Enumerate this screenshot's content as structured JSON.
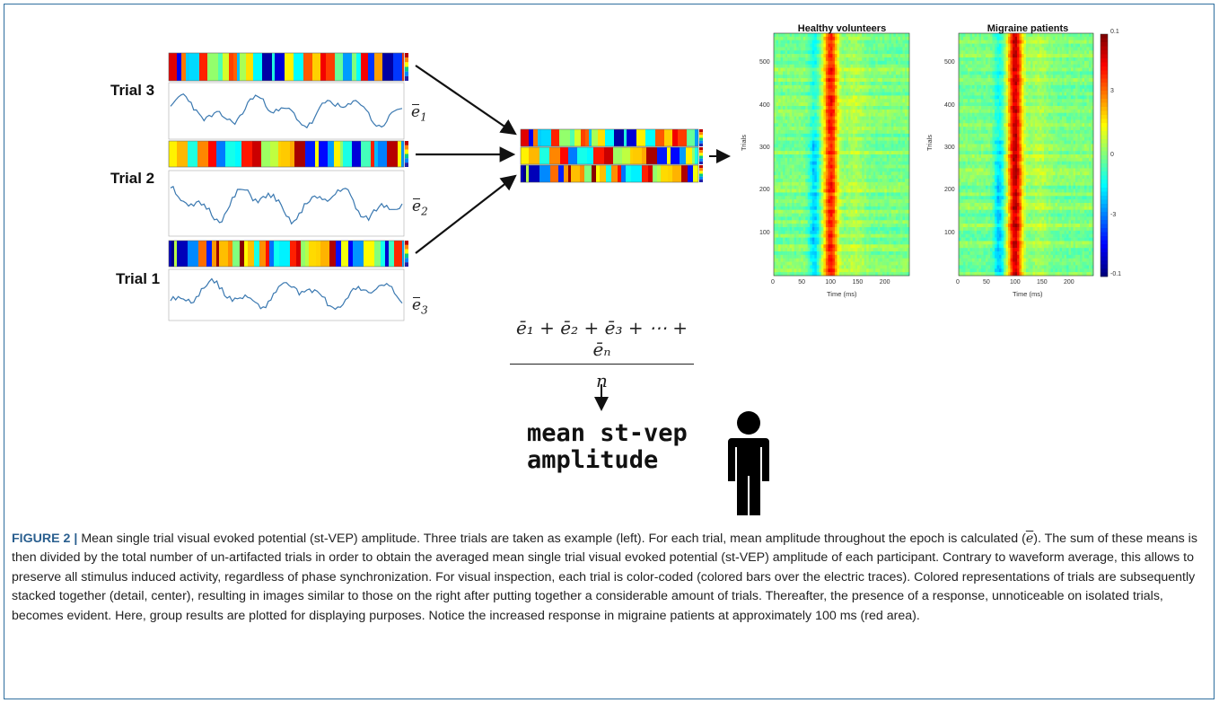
{
  "trials": [
    {
      "label": "Trial 3",
      "ebar_sub": "1"
    },
    {
      "label": "Trial 2",
      "ebar_sub": "2"
    },
    {
      "label": "Trial 1",
      "ebar_sub": "3"
    }
  ],
  "ebar_symbol": "e",
  "formula": {
    "numerator": "ē₁ + ē₂ + ē₃ + ⋯ + ēₙ",
    "denominator": "n"
  },
  "result_text": {
    "line1": "mean st-vep",
    "line2": "amplitude"
  },
  "person_icon": "person-silhouette-icon",
  "heatmaps": [
    {
      "title": "Healthy volunteers",
      "ylabel": "Trials",
      "xlabel": "Time (ms)"
    },
    {
      "title": "Migraine patients",
      "ylabel": "Trials",
      "xlabel": "Time (ms)"
    }
  ],
  "heatmap_axes": {
    "x_ticks": [
      "0",
      "50",
      "100",
      "150",
      "200"
    ],
    "y_ticks": [
      "100",
      "200",
      "300",
      "400",
      "500"
    ]
  },
  "colorbar": {
    "ticks": [
      "0.1",
      "3",
      "0",
      "-3",
      "-0.1"
    ]
  },
  "chart_data": {
    "type": "heatmap",
    "panels": [
      "Healthy volunteers",
      "Migraine patients"
    ],
    "xlabel": "Time (ms)",
    "ylabel": "Trials",
    "xlim": [
      0,
      250
    ],
    "ylim": [
      0,
      570
    ],
    "x_ticks": [
      0,
      50,
      100,
      150,
      200
    ],
    "y_ticks": [
      100,
      200,
      300,
      400,
      500
    ],
    "colorbar_ticks": [
      "0.1",
      "3",
      "0",
      "-3",
      "-0.1"
    ],
    "response_peak_ms": 100,
    "colormap": "jet"
  },
  "caption": {
    "label": "FIGURE 2",
    "separator": "|",
    "part1": "Mean single trial visual evoked potential (st-VEP) amplitude. Three trials are taken as example (left). For each trial, mean amplitude throughout the epoch is calculated (",
    "ebar": "e",
    "part2": "). The sum of these means is then divided by the total number of un-artifacted trials in order to obtain the averaged mean single trial visual evoked potential (st-VEP) amplitude of each participant. Contrary to waveform average, this allows to preserve all stimulus induced activity, regardless of phase synchronization. For visual inspection, each trial is color-coded (colored bars over the electric traces). Colored representations of trials are subsequently stacked together (detail, center), resulting in images similar to those on the right after putting together a considerable amount of trials. Thereafter, the presence of a response, unnoticeable on isolated trials, becomes evident. Here, group results are plotted for displaying purposes. Notice the increased response in migraine patients at approximately 100 ms (red area)."
  },
  "colors": {
    "frame": "#2f6f9f",
    "caption_label": "#2a5f8f",
    "trace": "#3a78b0"
  }
}
